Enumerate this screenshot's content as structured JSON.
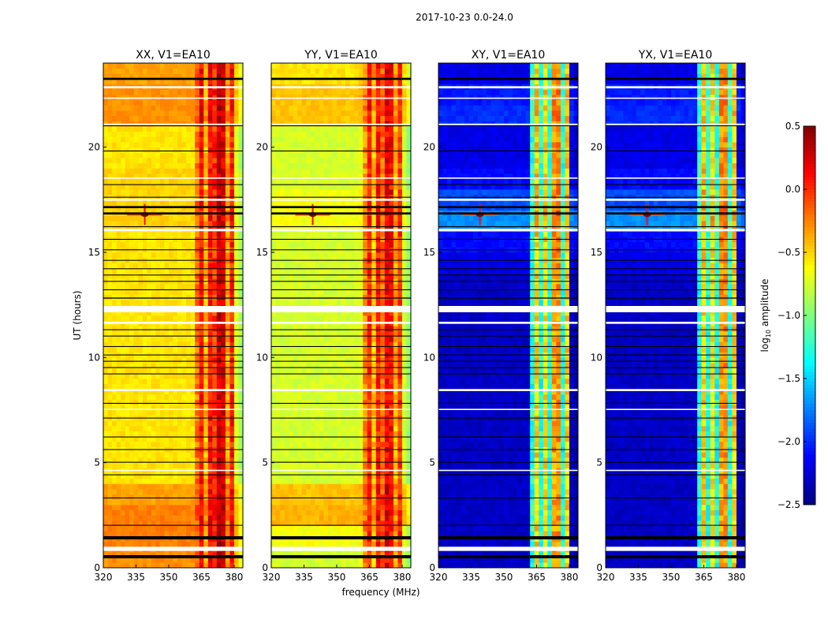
{
  "chart_data": {
    "type": "heatmap",
    "title": "2017-10-23 0.0-24.0",
    "xlabel": "frequency (MHz)",
    "ylabel": "UT (hours)",
    "xlim": [
      320,
      384
    ],
    "ylim": [
      0,
      24
    ],
    "xticks": [
      320,
      335,
      350,
      365,
      380
    ],
    "yticks": [
      0,
      5,
      10,
      15,
      20
    ],
    "freq_bin_mhz": 2,
    "time_bin_hours": 0.25,
    "colorbar": {
      "label_main": "log",
      "label_sub": "10",
      "label_rest": " amplitude",
      "range": [
        -2.5,
        0.5
      ],
      "ticks": [
        "0.5",
        "0.0",
        "−0.5",
        "−1.0",
        "−1.5",
        "−2.0",
        "−2.5"
      ],
      "tick_values": [
        0.5,
        0.0,
        -0.5,
        -1.0,
        -1.5,
        -2.0,
        -2.5
      ],
      "colormap": "jet"
    },
    "panels": [
      {
        "title": "XX, V1=EA10",
        "freq_profile": [
          -0.45,
          -0.45,
          -0.45,
          -0.45,
          -0.45,
          -0.45,
          -0.45,
          -0.45,
          -0.45,
          -0.45,
          -0.45,
          -0.45,
          -0.45,
          -0.45,
          -0.45,
          -0.45,
          -0.45,
          -0.45,
          -0.45,
          -0.45,
          -0.45,
          -0.2,
          0.1,
          -0.4,
          0.1,
          0.0,
          0.3,
          0.25,
          -0.3,
          0.05,
          -0.6,
          -0.8
        ],
        "hourly_offset": [
          0.15,
          0.2,
          0.2,
          0.1,
          -0.1,
          -0.1,
          -0.1,
          -0.1,
          -0.1,
          -0.1,
          -0.1,
          -0.1,
          -0.1,
          -0.1,
          -0.1,
          -0.1,
          -0.05,
          -0.05,
          -0.05,
          -0.1,
          -0.1,
          0.15,
          0.15,
          0.1
        ]
      },
      {
        "title": "YY, V1=EA10",
        "freq_profile": [
          -0.75,
          -0.75,
          -0.75,
          -0.75,
          -0.75,
          -0.75,
          -0.75,
          -0.75,
          -0.75,
          -0.75,
          -0.75,
          -0.75,
          -0.75,
          -0.75,
          -0.75,
          -0.75,
          -0.75,
          -0.75,
          -0.75,
          -0.75,
          -0.7,
          -0.3,
          0.0,
          -0.45,
          0.05,
          -0.2,
          0.15,
          0.1,
          -0.4,
          -0.05,
          -0.75,
          -0.95
        ],
        "hourly_offset": [
          0.0,
          0.1,
          0.35,
          0.3,
          0.0,
          0.0,
          0.0,
          0.0,
          0.0,
          0.0,
          0.0,
          0.0,
          0.0,
          0.0,
          0.0,
          0.0,
          0.1,
          0.1,
          0.0,
          0.0,
          0.0,
          0.3,
          0.3,
          0.2
        ]
      },
      {
        "title": "XY, V1=EA10",
        "freq_profile": [
          -2.3,
          -2.3,
          -2.3,
          -2.3,
          -2.3,
          -2.3,
          -2.3,
          -2.3,
          -2.3,
          -2.3,
          -2.3,
          -2.3,
          -2.3,
          -2.3,
          -2.3,
          -2.3,
          -2.3,
          -2.3,
          -2.3,
          -2.3,
          -2.3,
          -1.3,
          -0.5,
          -1.3,
          -0.55,
          -1.3,
          -0.35,
          -0.3,
          -1.3,
          -0.5,
          -2.3,
          -2.4
        ],
        "hourly_offset": [
          0.0,
          0.0,
          0.0,
          0.0,
          0.0,
          0.0,
          0.0,
          0.0,
          0.0,
          0.0,
          0.0,
          0.0,
          0.0,
          0.0,
          0.1,
          0.2,
          0.6,
          0.4,
          0.2,
          0.1,
          0.1,
          0.3,
          0.25,
          0.1
        ]
      },
      {
        "title": "YX, V1=EA10",
        "freq_profile": [
          -2.3,
          -2.3,
          -2.3,
          -2.3,
          -2.3,
          -2.3,
          -2.3,
          -2.3,
          -2.3,
          -2.3,
          -2.3,
          -2.3,
          -2.3,
          -2.3,
          -2.3,
          -2.3,
          -2.3,
          -2.3,
          -2.3,
          -2.3,
          -2.3,
          -1.3,
          -0.5,
          -1.3,
          -0.55,
          -1.3,
          -0.35,
          -0.3,
          -1.3,
          -0.5,
          -2.3,
          -2.4
        ],
        "hourly_offset": [
          0.0,
          0.0,
          0.0,
          0.0,
          0.0,
          0.0,
          0.0,
          0.0,
          0.0,
          0.0,
          0.0,
          0.0,
          0.0,
          0.0,
          0.1,
          0.2,
          0.6,
          0.4,
          0.2,
          0.1,
          0.1,
          0.3,
          0.25,
          0.1
        ]
      }
    ],
    "rfi_source": {
      "freq_mhz": 339,
      "ut_hours": 16.8,
      "log_amplitude": 0.5
    },
    "flagged_black_hours": [
      [
        0.45,
        0.6
      ],
      [
        1.35,
        1.5
      ],
      [
        16.8,
        16.9
      ],
      [
        17.1,
        17.2
      ],
      [
        23.2,
        23.3
      ],
      [
        2.0,
        2.04
      ],
      [
        3.3,
        3.34
      ],
      [
        4.4,
        4.44
      ],
      [
        5.0,
        5.04
      ],
      [
        5.6,
        5.64
      ],
      [
        6.2,
        6.24
      ],
      [
        7.1,
        7.14
      ],
      [
        7.8,
        7.84
      ],
      [
        9.2,
        9.24
      ],
      [
        9.5,
        9.54
      ],
      [
        9.8,
        9.84
      ],
      [
        10.1,
        10.14
      ],
      [
        10.5,
        10.54
      ],
      [
        11.0,
        11.04
      ],
      [
        11.3,
        11.34
      ],
      [
        12.8,
        12.85
      ],
      [
        13.2,
        13.24
      ],
      [
        13.6,
        13.64
      ],
      [
        13.9,
        13.94
      ],
      [
        14.2,
        14.24
      ],
      [
        14.6,
        14.64
      ],
      [
        15.1,
        15.14
      ],
      [
        15.6,
        15.64
      ],
      [
        18.2,
        18.24
      ],
      [
        19.8,
        19.84
      ],
      [
        21.0,
        21.04
      ],
      [
        17.6,
        17.64
      ],
      [
        16.2,
        16.24
      ]
    ],
    "no_data_hours": [
      [
        0.8,
        1.0
      ],
      [
        12.15,
        12.45
      ],
      [
        11.6,
        11.7
      ],
      [
        8.4,
        8.5
      ],
      [
        21.05,
        21.12
      ],
      [
        22.8,
        22.9
      ],
      [
        17.45,
        17.55
      ],
      [
        16.0,
        16.12
      ],
      [
        7.5,
        7.56
      ],
      [
        4.6,
        4.66
      ],
      [
        18.5,
        18.56
      ],
      [
        22.3,
        22.36
      ]
    ]
  }
}
